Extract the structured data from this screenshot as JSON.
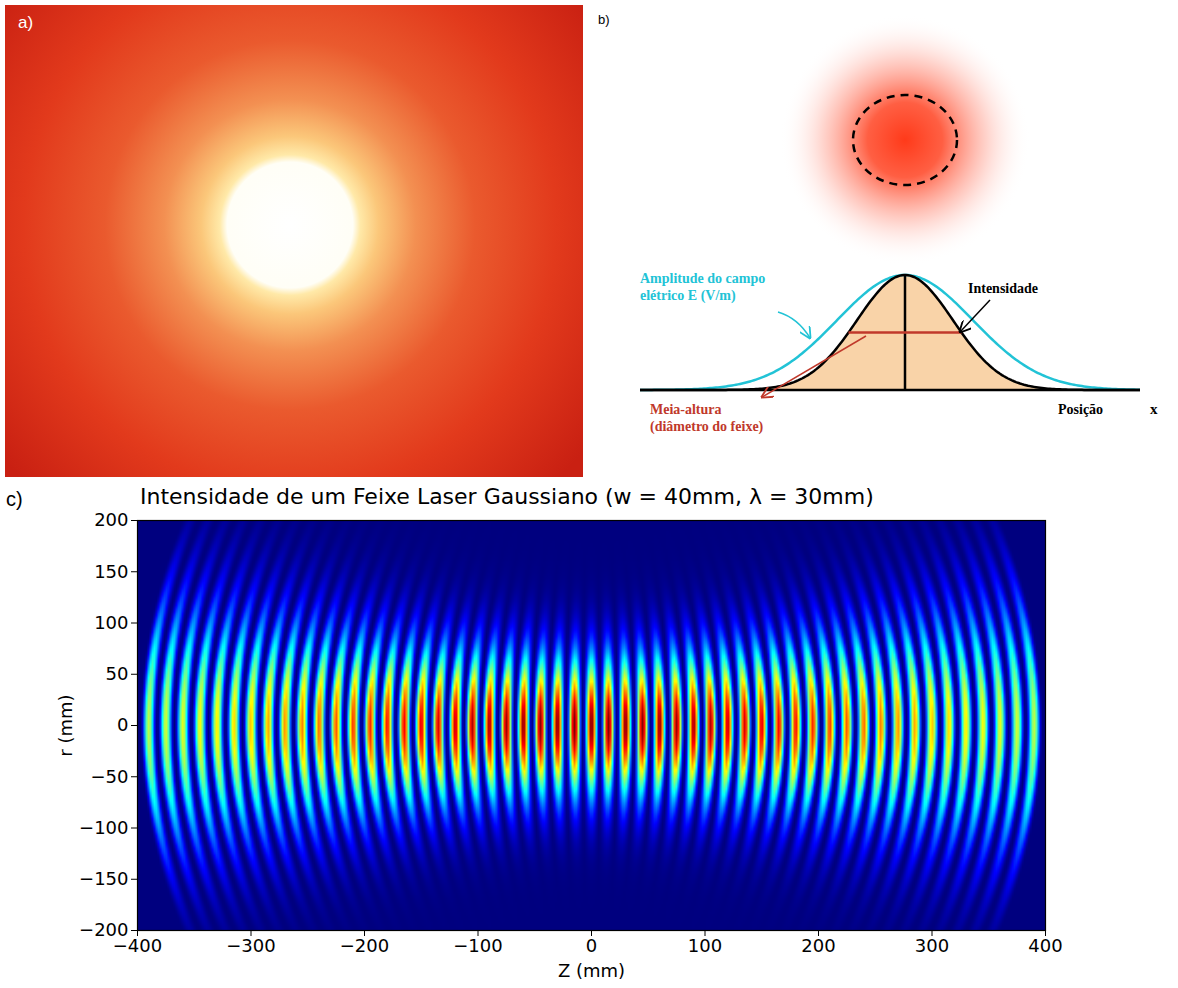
{
  "panels": {
    "a": {
      "label": "a)"
    },
    "b": {
      "label": "b)",
      "amplitude_label": "Amplitude do campo elétrico E (V/m)",
      "intensity_label": "Intensidade",
      "half_height_label": "Meia-altura (diâmetro do feixe)",
      "axis_label": "Posição",
      "axis_symbol": "x"
    },
    "c": {
      "label": "c)"
    }
  },
  "chart_data": {
    "type": "heatmap",
    "title": "Intensidade de um Feixe Laser Gaussiano (w = 40mm, λ = 30mm)",
    "x_label": "Z (mm)",
    "y_label": "r (mm)",
    "xlim": [
      -400,
      400
    ],
    "ylim": [
      -200,
      200
    ],
    "xticks": [
      -400,
      -300,
      -200,
      -100,
      0,
      100,
      200,
      300,
      400
    ],
    "yticks": [
      -200,
      -150,
      -100,
      -50,
      0,
      50,
      100,
      150,
      200
    ],
    "fringes": {
      "z": [
        -390,
        -375,
        -360,
        -345,
        -330,
        -315,
        -300,
        -285,
        -270,
        -255,
        -240,
        -225,
        -210,
        -195,
        -180,
        -165,
        -150,
        -135,
        -120,
        -105,
        -90,
        -75,
        -60,
        -45,
        -30,
        -15,
        0,
        15,
        30,
        45,
        60,
        75,
        90,
        105,
        120,
        135,
        150,
        165,
        180,
        195,
        210,
        225,
        240,
        255,
        270,
        285,
        300,
        315,
        330,
        345,
        360,
        375,
        390
      ],
      "peak": [
        0.56,
        0.58,
        0.6,
        0.62,
        0.64,
        0.66,
        0.68,
        0.71,
        0.73,
        0.75,
        0.77,
        0.79,
        0.82,
        0.84,
        0.86,
        0.88,
        0.9,
        0.91,
        0.93,
        0.95,
        0.96,
        0.97,
        0.98,
        0.99,
        0.99,
        1,
        1,
        1,
        0.99,
        0.99,
        0.98,
        0.97,
        0.96,
        0.95,
        0.93,
        0.91,
        0.9,
        0.88,
        0.86,
        0.84,
        0.82,
        0.79,
        0.77,
        0.75,
        0.73,
        0.71,
        0.68,
        0.66,
        0.64,
        0.62,
        0.6,
        0.58,
        0.56
      ],
      "half_width": [
        169,
        165,
        160,
        156,
        151,
        147,
        143,
        139,
        135,
        131,
        127,
        123,
        120,
        116,
        113,
        110,
        107,
        104,
        102,
        100,
        98,
        96,
        95,
        93,
        93,
        92,
        92,
        92,
        93,
        93,
        95,
        96,
        98,
        100,
        102,
        104,
        107,
        110,
        113,
        116,
        120,
        123,
        127,
        131,
        135,
        139,
        143,
        147,
        151,
        156,
        160,
        165,
        169
      ],
      "R": [
        -550,
        -542,
        -534,
        -526,
        -519,
        -513,
        -508,
        -504,
        -501,
        -500,
        -500,
        -503,
        -508,
        -516,
        -527,
        -544,
        -567,
        -598,
        -641,
        -700,
        -784,
        -908,
        -1102,
        -1434,
        -2113,
        -4182,
        null,
        4182,
        2113,
        1434,
        1102,
        908,
        784,
        700,
        641,
        598,
        567,
        544,
        527,
        516,
        508,
        503,
        500,
        500,
        501,
        504,
        508,
        513,
        519,
        526,
        534,
        542,
        550
      ]
    },
    "color_range": [
      0,
      1
    ]
  }
}
